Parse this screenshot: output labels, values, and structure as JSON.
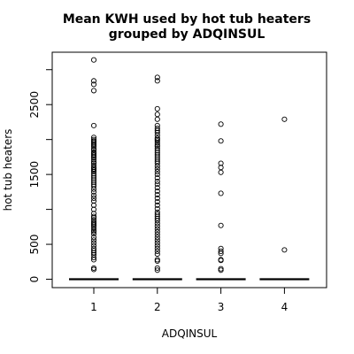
{
  "chart_data": {
    "type": "box",
    "title_line1": "Mean KWH used by hot tub heaters",
    "title_line2": "grouped by ADQINSUL",
    "xlabel": "ADQINSUL",
    "ylabel": "hot tub heaters",
    "categories": [
      "1",
      "2",
      "3",
      "4"
    ],
    "yticks": [
      "0",
      "500",
      "1500",
      "2500"
    ],
    "ytick_values": [
      0,
      500,
      1500,
      2500
    ],
    "yminor_ticks": [
      1000,
      2000,
      3000
    ],
    "ylim": [
      -120,
      3250
    ],
    "grid": false,
    "legend": "none",
    "medians": [
      0,
      0,
      0,
      0
    ],
    "outliers": [
      [
        3140,
        2840,
        2790,
        2700,
        2200,
        2030,
        2000,
        1980,
        1960,
        1940,
        1920,
        1900,
        1870,
        1850,
        1820,
        1800,
        1780,
        1760,
        1740,
        1710,
        1680,
        1660,
        1630,
        1600,
        1580,
        1560,
        1540,
        1510,
        1480,
        1450,
        1420,
        1390,
        1360,
        1330,
        1290,
        1250,
        1200,
        1160,
        1120,
        1060,
        1000,
        940,
        900,
        880,
        850,
        820,
        800,
        780,
        760,
        730,
        700,
        680,
        650,
        600,
        560,
        520,
        480,
        440,
        410,
        380,
        350,
        310,
        280,
        160,
        140
      ],
      [
        2890,
        2840,
        2440,
        2360,
        2290,
        2200,
        2160,
        2130,
        2100,
        2060,
        2020,
        2000,
        1980,
        1950,
        1920,
        1900,
        1870,
        1840,
        1810,
        1780,
        1750,
        1720,
        1690,
        1660,
        1620,
        1580,
        1540,
        1500,
        1450,
        1400,
        1360,
        1310,
        1260,
        1210,
        1160,
        1110,
        1060,
        1010,
        960,
        930,
        900,
        870,
        840,
        800,
        760,
        720,
        680,
        640,
        600,
        560,
        520,
        480,
        440,
        400,
        360,
        280,
        260,
        160,
        130
      ],
      [
        2220,
        1980,
        1660,
        1600,
        1530,
        1230,
        770,
        440,
        400,
        370,
        280,
        270,
        150,
        130
      ],
      [
        2290,
        420
      ]
    ]
  }
}
